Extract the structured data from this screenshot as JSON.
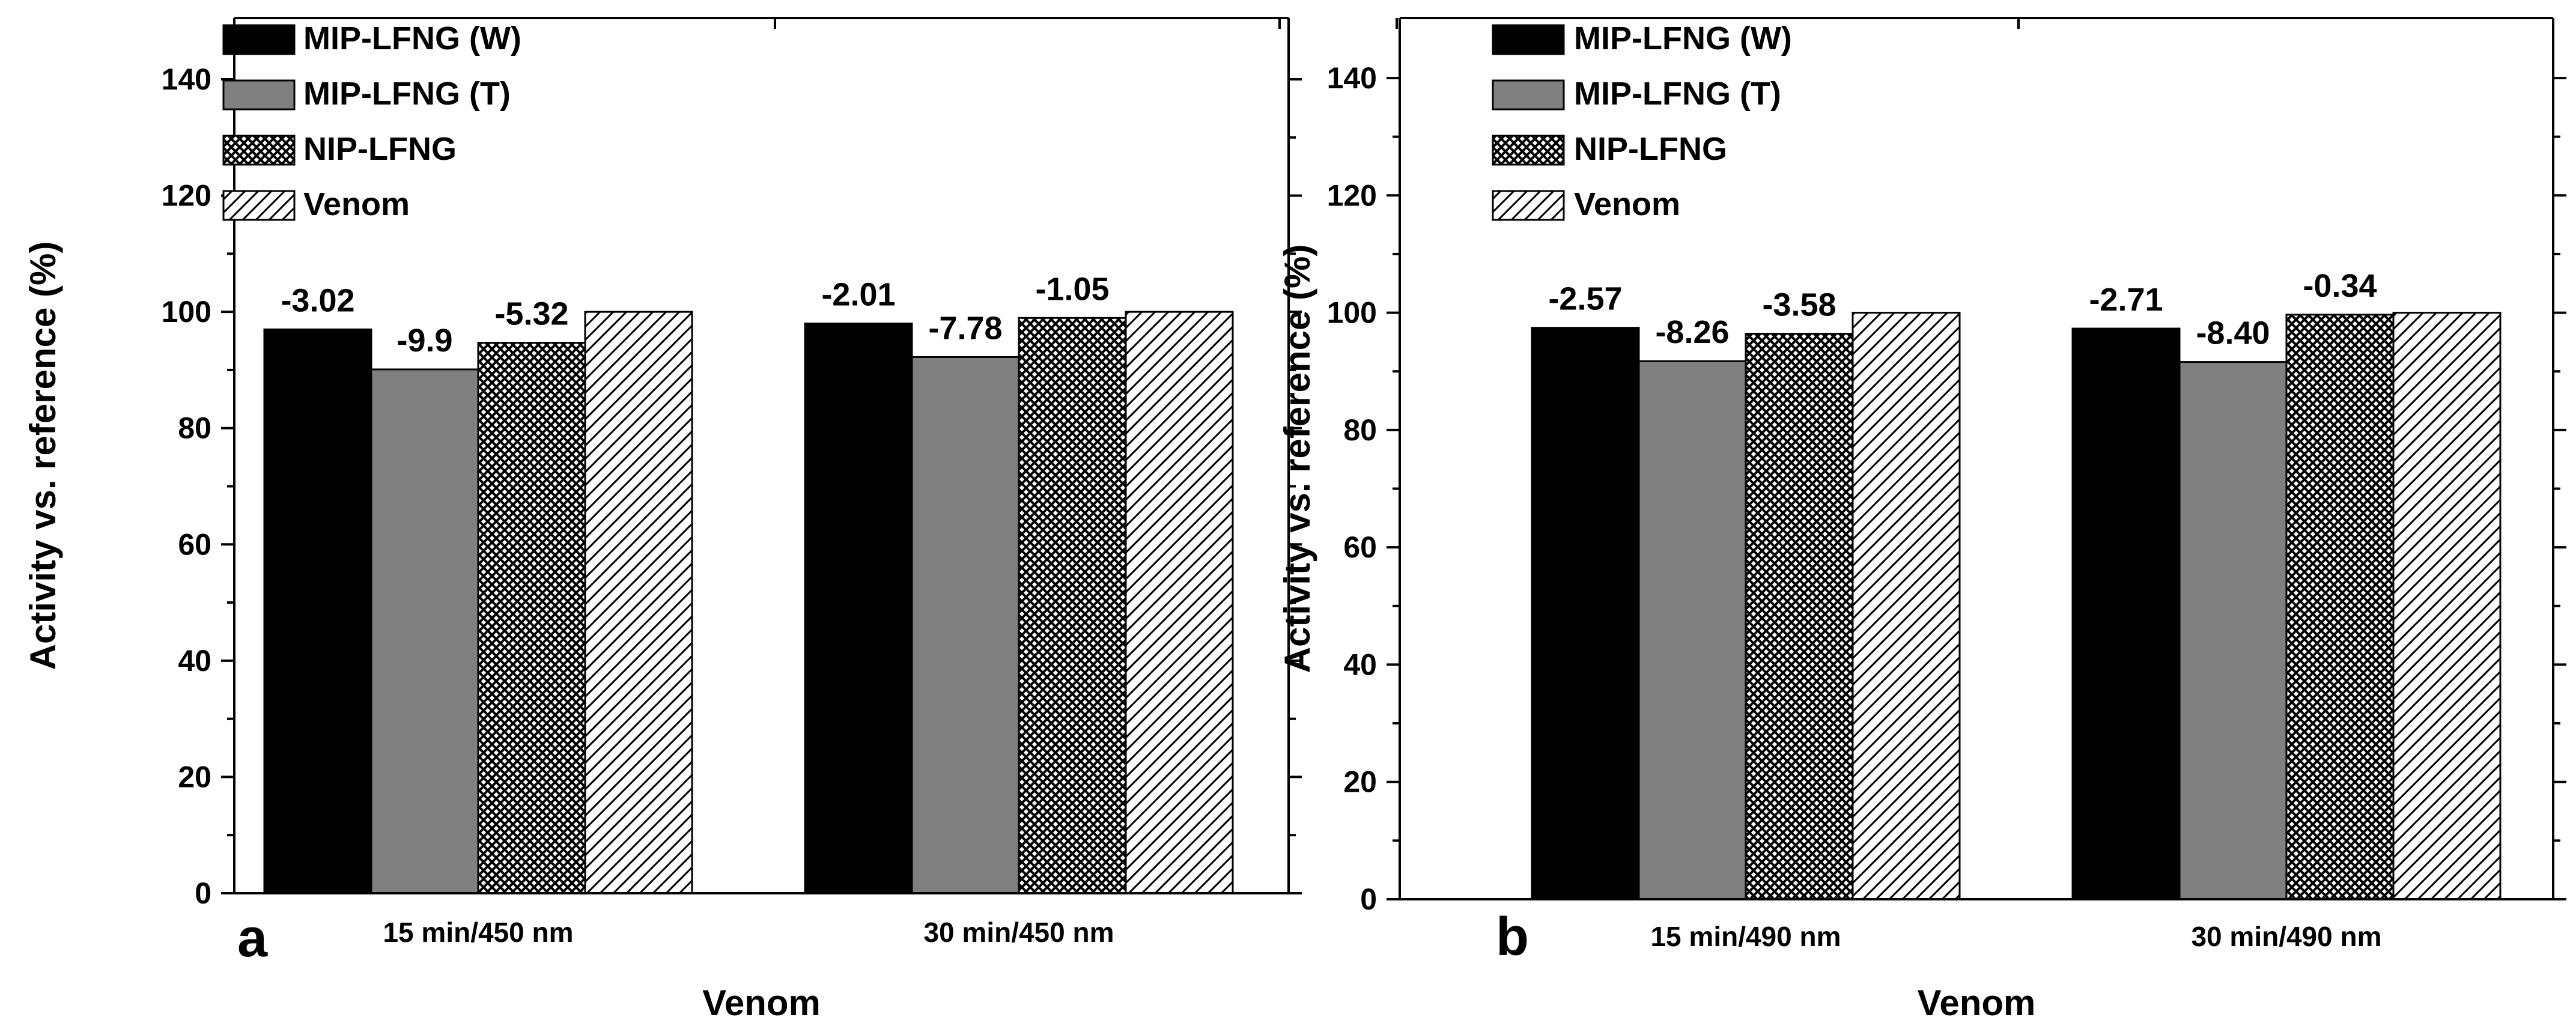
{
  "chart_data": [
    {
      "type": "bar",
      "panel_label": "a",
      "title": "",
      "xlabel": "Venom",
      "ylabel": "Activity vs. reference (%)",
      "ylim": [
        0,
        150
      ],
      "yticks": [
        "0",
        "20",
        "40",
        "60",
        "80",
        "100",
        "120",
        "140"
      ],
      "categories": [
        "15 min/450 nm",
        "30 min/450 nm"
      ],
      "series": [
        {
          "name": "MIP-LFNG (W)",
          "fill": "solid-black",
          "values": [
            96.98,
            97.99
          ],
          "labels": [
            "-3.02",
            "-2.01"
          ]
        },
        {
          "name": "MIP-LFNG (T)",
          "fill": "solid-gray",
          "values": [
            90.1,
            92.22
          ],
          "labels": [
            "-9.9",
            "-7.78"
          ]
        },
        {
          "name": "NIP-LFNG",
          "fill": "crosshatch",
          "values": [
            94.68,
            98.95
          ],
          "labels": [
            "-5.32",
            "-1.05"
          ]
        },
        {
          "name": "Venom",
          "fill": "diagonal-hatch",
          "values": [
            100,
            100
          ],
          "labels": [
            "",
            ""
          ]
        }
      ],
      "legend_position": "top-left"
    },
    {
      "type": "bar",
      "panel_label": "b",
      "title": "",
      "xlabel": "Venom",
      "ylabel": "Activity vs. reference (%)",
      "ylim": [
        0,
        150
      ],
      "yticks": [
        "0",
        "20",
        "40",
        "60",
        "80",
        "100",
        "120",
        "140"
      ],
      "categories": [
        "15 min/490 nm",
        "30 min/490 nm"
      ],
      "series": [
        {
          "name": "MIP-LFNG (W)",
          "fill": "solid-black",
          "values": [
            97.43,
            97.29
          ],
          "labels": [
            "-2.57",
            "-2.71"
          ]
        },
        {
          "name": "MIP-LFNG (T)",
          "fill": "solid-gray",
          "values": [
            91.74,
            91.6
          ],
          "labels": [
            "-8.26",
            "-8.40"
          ]
        },
        {
          "name": "NIP-LFNG",
          "fill": "crosshatch",
          "values": [
            96.42,
            99.66
          ],
          "labels": [
            "-3.58",
            "-0.34"
          ]
        },
        {
          "name": "Venom",
          "fill": "diagonal-hatch",
          "values": [
            100,
            100
          ],
          "labels": [
            "",
            ""
          ]
        }
      ],
      "legend_position": "top-left"
    }
  ],
  "colors": {
    "solid-black": "#000000",
    "solid-gray": "#808080",
    "axis": "#000000",
    "background": "#ffffff"
  }
}
